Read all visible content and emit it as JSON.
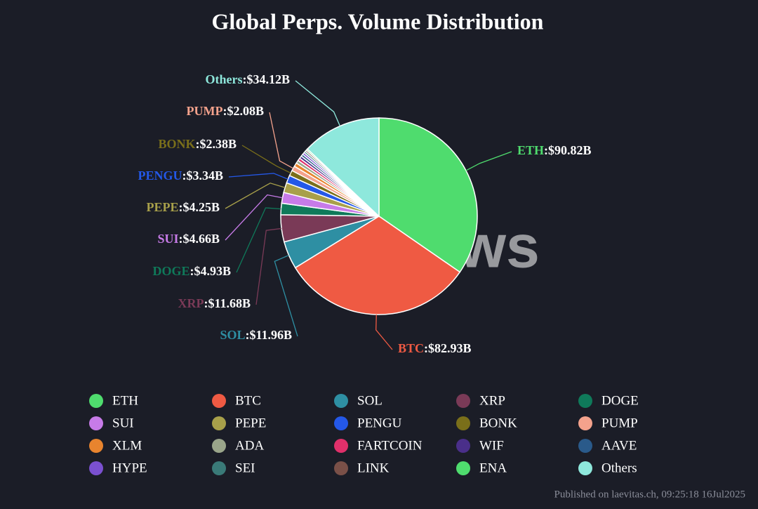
{
  "chart_data": {
    "type": "pie",
    "title": "Global Perps. Volume Distribution",
    "categories": [
      "ETH",
      "BTC",
      "SOL",
      "XRP",
      "DOGE",
      "SUI",
      "PEPE",
      "PENGU",
      "BONK",
      "PUMP",
      "XLM",
      "ADA",
      "FARTCOIN",
      "WIF",
      "AAVE",
      "HYPE",
      "SEI",
      "LINK",
      "ENA",
      "Others"
    ],
    "values": [
      90.82,
      82.93,
      11.96,
      11.68,
      4.93,
      4.66,
      4.25,
      3.34,
      2.38,
      2.08,
      1.6,
      1.3,
      1.2,
      1.1,
      1.0,
      0.9,
      0.8,
      0.7,
      0.6,
      34.12
    ],
    "value_labels": [
      ":$90.82B",
      ":$82.93B",
      ":$11.96B",
      ":$11.68B",
      ":$4.93B",
      ":$4.66B",
      ":$4.25B",
      ":$3.34B",
      ":$2.38B",
      ":$2.08B",
      null,
      null,
      null,
      null,
      null,
      null,
      null,
      null,
      null,
      ":$34.12B"
    ],
    "colors": [
      "#4fdc6e",
      "#ef5a43",
      "#2e8fa3",
      "#7a3a57",
      "#0f7a5a",
      "#c77be8",
      "#a8a04a",
      "#2458e8",
      "#7a6f1a",
      "#f4a28c",
      "#e8842e",
      "#9aa58a",
      "#e0306a",
      "#4a2f8a",
      "#2a5a8a",
      "#7a50d0",
      "#3a7a78",
      "#7a5048",
      "#4fdc6e",
      "#8ee8dc"
    ],
    "legend": "bottom",
    "watermark": "PANews",
    "footer": "Published on laevitas.ch, 09:25:18 16Jul2025"
  }
}
